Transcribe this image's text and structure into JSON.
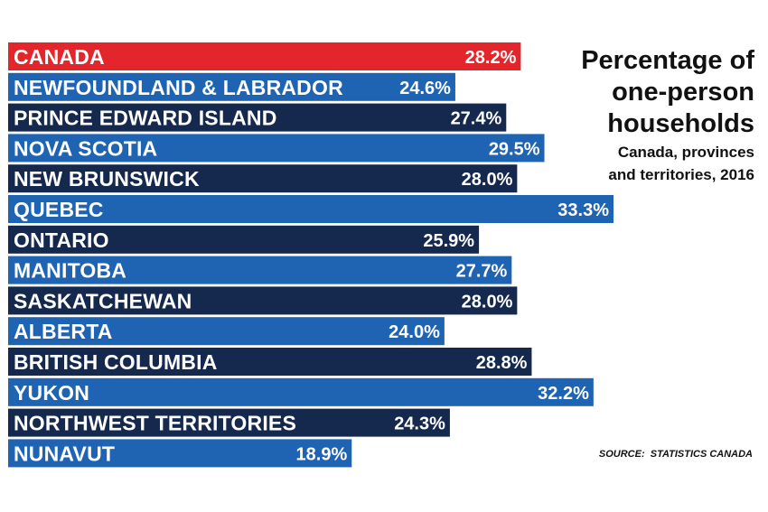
{
  "chart_data": {
    "type": "bar",
    "orientation": "horizontal",
    "title_lines": [
      "Percentage of",
      "one-person",
      "households"
    ],
    "subtitle_lines": [
      "Canada, provinces",
      "and territories, 2016"
    ],
    "source": "SOURCE:  STATISTICS CANADA",
    "categories": [
      "CANADA",
      "NEWFOUNDLAND & LABRADOR",
      "PRINCE EDWARD ISLAND",
      "NOVA SCOTIA",
      "NEW BRUNSWICK",
      "QUEBEC",
      "ONTARIO",
      "MANITOBA",
      "SASKATCHEWAN",
      "ALBERTA",
      "BRITISH COLUMBIA",
      "YUKON",
      "NORTHWEST TERRITORIES",
      "NUNAVUT"
    ],
    "values": [
      28.2,
      24.6,
      27.4,
      29.5,
      28.0,
      33.3,
      25.9,
      27.7,
      28.0,
      24.0,
      28.8,
      32.2,
      24.3,
      18.9
    ],
    "value_labels": [
      "28.2%",
      "24.6%",
      "27.4%",
      "29.5%",
      "28.0%",
      "33.3%",
      "25.9%",
      "27.7%",
      "28.0%",
      "24.0%",
      "28.8%",
      "32.2%",
      "24.3%",
      "18.9%"
    ],
    "bar_colors": [
      "#e3262b",
      "#1f63b3",
      "#15284d",
      "#1f63b3",
      "#15284d",
      "#1f63b3",
      "#15284d",
      "#1f63b3",
      "#15284d",
      "#1f63b3",
      "#15284d",
      "#1f63b3",
      "#15284d",
      "#1f63b3"
    ],
    "xlim": [
      0,
      33.3
    ],
    "grid": false,
    "legend": "none"
  },
  "colors": {
    "highlight": "#e3262b",
    "light_blue": "#1f63b3",
    "dark_navy": "#15284d",
    "label_text": "#ffffff",
    "title_text": "#111111"
  }
}
